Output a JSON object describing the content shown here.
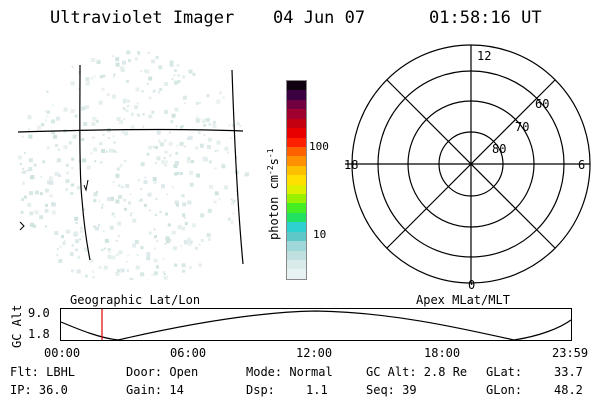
{
  "header": {
    "title": "Ultraviolet Imager",
    "date": "04 Jun 07",
    "time": "01:58:16 UT"
  },
  "colorbar": {
    "unit_label": "photon cm",
    "exp1": "-2",
    "s_label": "s",
    "exp2": "-1",
    "tick_100": "100",
    "tick_10": "10",
    "colors": [
      "#e8f2f2",
      "#d8eaea",
      "#c0e0e0",
      "#9fd8d8",
      "#5ec8c8",
      "#2ed0d0",
      "#22e060",
      "#44ee22",
      "#99f000",
      "#ddf000",
      "#ffe000",
      "#ffc000",
      "#ff9000",
      "#ff6000",
      "#ff2000",
      "#e80000",
      "#c40010",
      "#a00030",
      "#700040",
      "#3a0040",
      "#100010"
    ]
  },
  "polar": {
    "mlt_12": "12",
    "mlt_18": "18",
    "mlt_6": "6",
    "mlt_0": "0",
    "lat_60": "60",
    "lat_70": "70",
    "lat_80": "80"
  },
  "map_labels": {
    "geographic": "Geographic Lat/Lon",
    "apex": "Apex MLat/MLT"
  },
  "altitude_panel": {
    "ylabel": "GC Alt",
    "y_top": "9.0",
    "y_bottom": "1.8",
    "x_ticks": [
      "00:00",
      "06:00",
      "12:00",
      "18:00",
      "23:59"
    ]
  },
  "info": {
    "flt": "Flt: LBHL",
    "door": "Door: Open",
    "mode": "Mode: Normal",
    "gc_alt": "GC Alt: 2.8 Re",
    "glat_label": "GLat:",
    "glat_value": "33.7",
    "ip": "IP: 36.0",
    "gain": "Gain: 14",
    "dsp_label": "Dsp:",
    "dsp_value": "1.1",
    "seq": "Seq: 39",
    "glon_label": "GLon:",
    "glon_value": "48.2"
  },
  "marker_color": "#dd0000"
}
